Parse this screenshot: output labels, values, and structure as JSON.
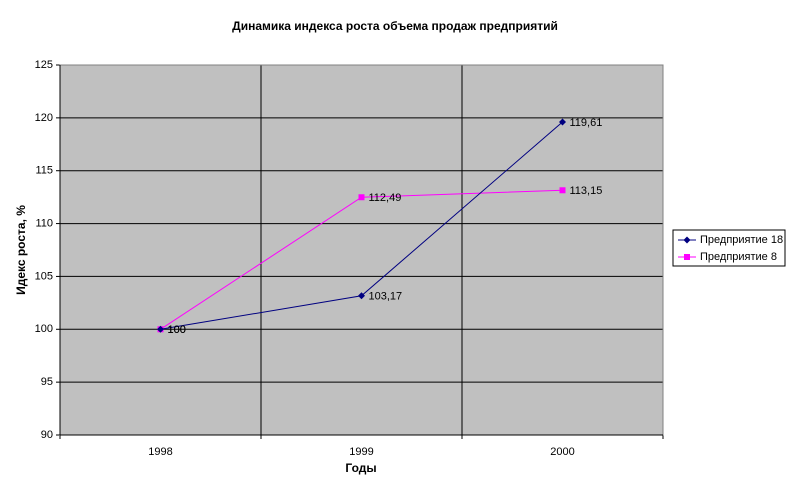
{
  "chart_data": {
    "type": "line",
    "title": "Динамика индекса роста объема продаж предприятий",
    "x_label": "Годы",
    "y_label": "Идекс роста, %",
    "categories": [
      "1998",
      "1999",
      "2000"
    ],
    "series": [
      {
        "name": "Предприятие 18",
        "color": "#000080",
        "marker": "diamond",
        "values": [
          100,
          103.17,
          119.61
        ],
        "value_labels": [
          "100",
          "103,17",
          "119,61"
        ]
      },
      {
        "name": "Предприятие 8",
        "color": "#ff00ff",
        "marker": "square",
        "values": [
          100,
          112.49,
          113.15
        ],
        "value_labels": [
          "100",
          "112,49",
          "113,15"
        ]
      }
    ],
    "ylim": [
      90,
      125
    ],
    "yticks": [
      90,
      95,
      100,
      105,
      110,
      115,
      120,
      125
    ],
    "grid": true,
    "legend": "right"
  }
}
